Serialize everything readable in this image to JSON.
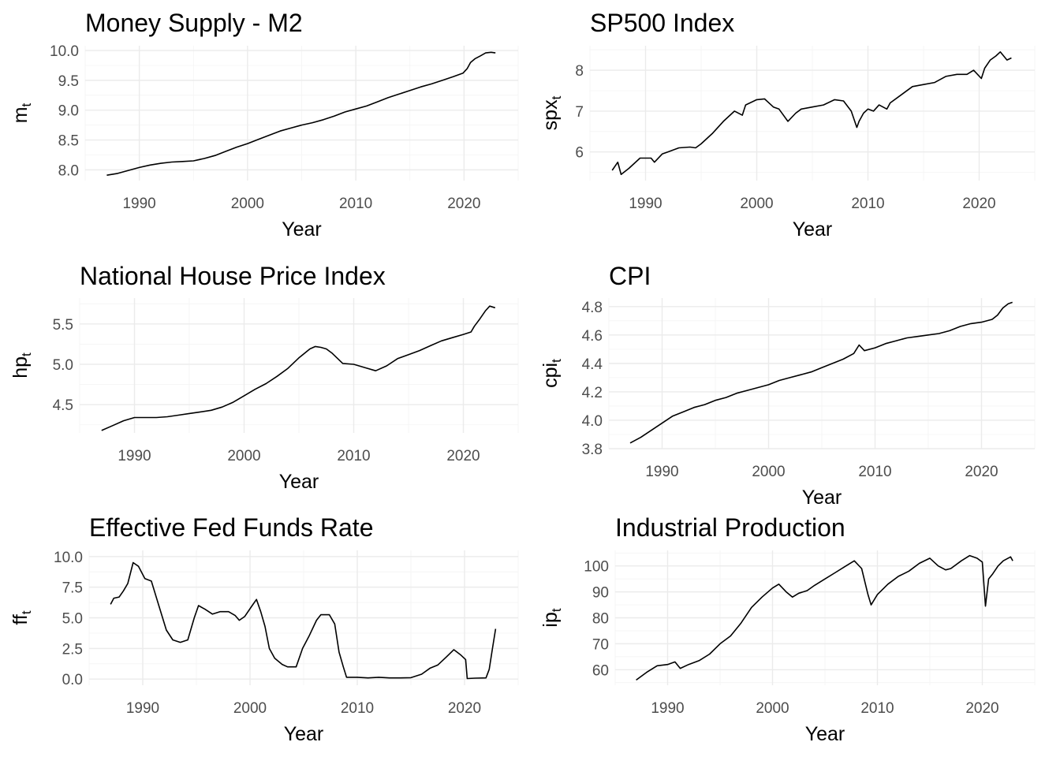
{
  "chart_data": [
    {
      "type": "line",
      "title": "Money Supply - M2",
      "xlabel": "Year",
      "ylabel": {
        "base": "m",
        "sub": "t"
      },
      "xlim": [
        1985,
        2025
      ],
      "ylim": [
        7.82,
        10.08
      ],
      "xticks": [
        1990,
        2000,
        2010,
        2020
      ],
      "xtick_labels": [
        "1990",
        "2000",
        "2010",
        "2020"
      ],
      "yticks": [
        8.0,
        8.5,
        9.0,
        9.5,
        10.0
      ],
      "ytick_labels": [
        "8.0",
        "8.5",
        "9.0",
        "9.5",
        "10.0"
      ],
      "grid": true,
      "x": [
        1987,
        1988,
        1989,
        1990,
        1991,
        1992,
        1993,
        1994,
        1995,
        1996,
        1997,
        1998,
        1999,
        2000,
        2001,
        2002,
        2003,
        2004,
        2005,
        2006,
        2007,
        2008,
        2009,
        2010,
        2011,
        2012,
        2013,
        2014,
        2015,
        2016,
        2017,
        2018,
        2019,
        2019.9,
        2020.3,
        2020.6,
        2021,
        2021.5,
        2022,
        2022.5,
        2022.9
      ],
      "y": [
        7.91,
        7.94,
        7.99,
        8.04,
        8.08,
        8.11,
        8.13,
        8.14,
        8.15,
        8.19,
        8.24,
        8.31,
        8.38,
        8.44,
        8.51,
        8.58,
        8.65,
        8.7,
        8.75,
        8.79,
        8.84,
        8.9,
        8.97,
        9.02,
        9.07,
        9.14,
        9.21,
        9.27,
        9.33,
        9.39,
        9.44,
        9.5,
        9.56,
        9.62,
        9.7,
        9.8,
        9.86,
        9.91,
        9.96,
        9.97,
        9.96
      ]
    },
    {
      "type": "line",
      "title": "SP500 Index",
      "xlabel": "Year",
      "ylabel": {
        "base": "spx",
        "sub": "t"
      },
      "xlim": [
        1985,
        2025
      ],
      "ylim": [
        5.3,
        8.6
      ],
      "xticks": [
        1990,
        2000,
        2010,
        2020
      ],
      "xtick_labels": [
        "1990",
        "2000",
        "2010",
        "2020"
      ],
      "yticks": [
        6,
        7,
        8
      ],
      "ytick_labels": [
        "6",
        "7",
        "8"
      ],
      "grid": true,
      "x": [
        1987,
        1987.5,
        1987.8,
        1988.5,
        1989.5,
        1990.5,
        1990.8,
        1991.5,
        1992,
        1993,
        1994,
        1994.5,
        1995,
        1996,
        1997,
        1998,
        1998.7,
        1999,
        2000,
        2000.7,
        2001.5,
        2002,
        2002.8,
        2003.5,
        2004,
        2005,
        2006,
        2007,
        2007.8,
        2008.5,
        2009,
        2009.2,
        2009.6,
        2010,
        2010.5,
        2011,
        2011.7,
        2012,
        2013,
        2014,
        2015,
        2016,
        2017,
        2018,
        2018.9,
        2019.5,
        2020.2,
        2020.5,
        2021,
        2021.5,
        2021.9,
        2022.5,
        2022.9
      ],
      "y": [
        5.55,
        5.75,
        5.45,
        5.6,
        5.85,
        5.85,
        5.75,
        5.95,
        6.0,
        6.1,
        6.12,
        6.1,
        6.2,
        6.45,
        6.75,
        7.0,
        6.9,
        7.15,
        7.28,
        7.3,
        7.1,
        7.05,
        6.75,
        6.95,
        7.05,
        7.1,
        7.15,
        7.28,
        7.25,
        7.0,
        6.6,
        6.75,
        6.95,
        7.05,
        7.0,
        7.15,
        7.05,
        7.2,
        7.4,
        7.6,
        7.65,
        7.7,
        7.85,
        7.9,
        7.9,
        8.0,
        7.8,
        8.05,
        8.25,
        8.35,
        8.45,
        8.25,
        8.3
      ]
    },
    {
      "type": "line",
      "title": "National House Price Index",
      "xlabel": "Year",
      "ylabel": {
        "base": "hp",
        "sub": "t"
      },
      "xlim": [
        1985,
        2025
      ],
      "ylim": [
        4.15,
        5.82
      ],
      "xticks": [
        1990,
        2000,
        2010,
        2020
      ],
      "xtick_labels": [
        "1990",
        "2000",
        "2010",
        "2020"
      ],
      "yticks": [
        4.5,
        5.0,
        5.5
      ],
      "ytick_labels": [
        "4.5",
        "5.0",
        "5.5"
      ],
      "grid": true,
      "x": [
        1987,
        1988,
        1989,
        1990,
        1991,
        1992,
        1993,
        1994,
        1995,
        1996,
        1997,
        1998,
        1999,
        2000,
        2001,
        2002,
        2003,
        2004,
        2005,
        2006,
        2006.5,
        2007,
        2007.5,
        2008,
        2009,
        2010,
        2011,
        2012,
        2013,
        2014,
        2015,
        2016,
        2017,
        2018,
        2019,
        2020,
        2020.7,
        2021,
        2021.5,
        2022,
        2022.4,
        2022.9
      ],
      "y": [
        4.18,
        4.24,
        4.3,
        4.34,
        4.34,
        4.34,
        4.35,
        4.37,
        4.39,
        4.41,
        4.43,
        4.47,
        4.53,
        4.61,
        4.69,
        4.76,
        4.85,
        4.95,
        5.08,
        5.19,
        5.22,
        5.21,
        5.19,
        5.14,
        5.01,
        5.0,
        4.96,
        4.92,
        4.98,
        5.07,
        5.12,
        5.17,
        5.23,
        5.29,
        5.33,
        5.37,
        5.4,
        5.47,
        5.56,
        5.66,
        5.72,
        5.7
      ]
    },
    {
      "type": "line",
      "title": "CPI",
      "xlabel": "Year",
      "ylabel": {
        "base": "cpi",
        "sub": "t"
      },
      "xlim": [
        1985,
        2025
      ],
      "ylim": [
        3.8,
        4.86
      ],
      "xticks": [
        1990,
        2000,
        2010,
        2020
      ],
      "xtick_labels": [
        "1990",
        "2000",
        "2010",
        "2020"
      ],
      "yticks": [
        3.8,
        4.0,
        4.2,
        4.4,
        4.6,
        4.8
      ],
      "ytick_labels": [
        "3.8",
        "4.0",
        "4.2",
        "4.4",
        "4.6",
        "4.8"
      ],
      "grid": true,
      "x": [
        1987,
        1988,
        1989,
        1990,
        1991,
        1992,
        1993,
        1994,
        1995,
        1996,
        1997,
        1998,
        1999,
        2000,
        2001,
        2002,
        2003,
        2004,
        2005,
        2006,
        2007,
        2008,
        2008.5,
        2009,
        2010,
        2011,
        2012,
        2013,
        2014,
        2015,
        2016,
        2017,
        2018,
        2019,
        2020,
        2021,
        2021.5,
        2022,
        2022.5,
        2022.9
      ],
      "y": [
        3.84,
        3.88,
        3.93,
        3.98,
        4.03,
        4.06,
        4.09,
        4.11,
        4.14,
        4.16,
        4.19,
        4.21,
        4.23,
        4.25,
        4.28,
        4.3,
        4.32,
        4.34,
        4.37,
        4.4,
        4.43,
        4.47,
        4.53,
        4.49,
        4.51,
        4.54,
        4.56,
        4.58,
        4.59,
        4.6,
        4.61,
        4.63,
        4.66,
        4.68,
        4.69,
        4.71,
        4.74,
        4.79,
        4.82,
        4.83
      ]
    },
    {
      "type": "line",
      "title": "Effective Fed Funds Rate",
      "xlabel": "Year",
      "ylabel": {
        "base": "ff",
        "sub": "t"
      },
      "xlim": [
        1985,
        2025
      ],
      "ylim": [
        -0.5,
        10.5
      ],
      "xticks": [
        1990,
        2000,
        2010,
        2020
      ],
      "xtick_labels": [
        "1990",
        "2000",
        "2010",
        "2020"
      ],
      "yticks": [
        0.0,
        2.5,
        5.0,
        7.5,
        10.0
      ],
      "ytick_labels": [
        "0.0",
        "2.5",
        "5.0",
        "7.5",
        "10.0"
      ],
      "grid": true,
      "x": [
        1987,
        1987.3,
        1987.8,
        1988.2,
        1988.6,
        1989.1,
        1989.6,
        1990.2,
        1990.8,
        1991.5,
        1992.2,
        1992.8,
        1993.5,
        1994.2,
        1994.8,
        1995.2,
        1995.8,
        1996.5,
        1997.2,
        1998,
        1998.6,
        1999,
        1999.5,
        2000.2,
        2000.6,
        2001,
        2001.4,
        2001.8,
        2002.3,
        2003,
        2003.5,
        2004.3,
        2004.9,
        2005.5,
        2006.2,
        2006.6,
        2007.4,
        2007.9,
        2008.3,
        2008.7,
        2009,
        2010,
        2011,
        2012,
        2013,
        2014,
        2015,
        2016,
        2016.8,
        2017.5,
        2018.3,
        2019,
        2019.6,
        2020.1,
        2020.25,
        2021,
        2022,
        2022.3,
        2022.6,
        2022.9
      ],
      "y": [
        6.1,
        6.6,
        6.7,
        7.2,
        7.8,
        9.5,
        9.2,
        8.2,
        8.0,
        6.0,
        4.0,
        3.2,
        3.0,
        3.2,
        5.0,
        6.0,
        5.7,
        5.3,
        5.5,
        5.5,
        5.2,
        4.8,
        5.1,
        6.0,
        6.5,
        5.5,
        4.3,
        2.5,
        1.7,
        1.2,
        1.0,
        1.0,
        2.5,
        3.5,
        4.8,
        5.25,
        5.25,
        4.5,
        2.2,
        1.0,
        0.15,
        0.15,
        0.1,
        0.15,
        0.1,
        0.1,
        0.12,
        0.4,
        0.9,
        1.15,
        1.8,
        2.4,
        2.0,
        1.6,
        0.05,
        0.08,
        0.1,
        0.8,
        2.5,
        4.1
      ]
    },
    {
      "type": "line",
      "title": "Industrial Production",
      "xlabel": "Year",
      "ylabel": {
        "base": "ip",
        "sub": "t"
      },
      "xlim": [
        1985,
        2025
      ],
      "ylim": [
        54,
        106
      ],
      "xticks": [
        1990,
        2000,
        2010,
        2020
      ],
      "xtick_labels": [
        "1990",
        "2000",
        "2010",
        "2020"
      ],
      "yticks": [
        60,
        70,
        80,
        90,
        100
      ],
      "ytick_labels": [
        "60",
        "70",
        "80",
        "90",
        "100"
      ],
      "grid": true,
      "x": [
        1987,
        1988,
        1989,
        1990,
        1990.7,
        1991.2,
        1992,
        1993,
        1994,
        1995,
        1996,
        1997,
        1998,
        1999,
        2000,
        2000.6,
        2001.3,
        2001.9,
        2002.5,
        2003.3,
        2004,
        2005,
        2006,
        2007,
        2007.8,
        2008.5,
        2009.1,
        2009.4,
        2010,
        2011,
        2012,
        2013,
        2014,
        2015,
        2015.8,
        2016.5,
        2017,
        2018,
        2018.8,
        2019.5,
        2020,
        2020.3,
        2020.6,
        2021,
        2021.5,
        2022,
        2022.7,
        2022.9
      ],
      "y": [
        56,
        59,
        61.5,
        62,
        63,
        60.5,
        62,
        63.5,
        66,
        70,
        73,
        78,
        84,
        88,
        91.5,
        93,
        90,
        88,
        89.5,
        90.5,
        92.5,
        95,
        97.5,
        100,
        102,
        99,
        89,
        85,
        89,
        93,
        96,
        98,
        101,
        103,
        100,
        98.5,
        99,
        102,
        104,
        103,
        101.5,
        84.5,
        95,
        97,
        100,
        102,
        103.5,
        102
      ]
    }
  ]
}
